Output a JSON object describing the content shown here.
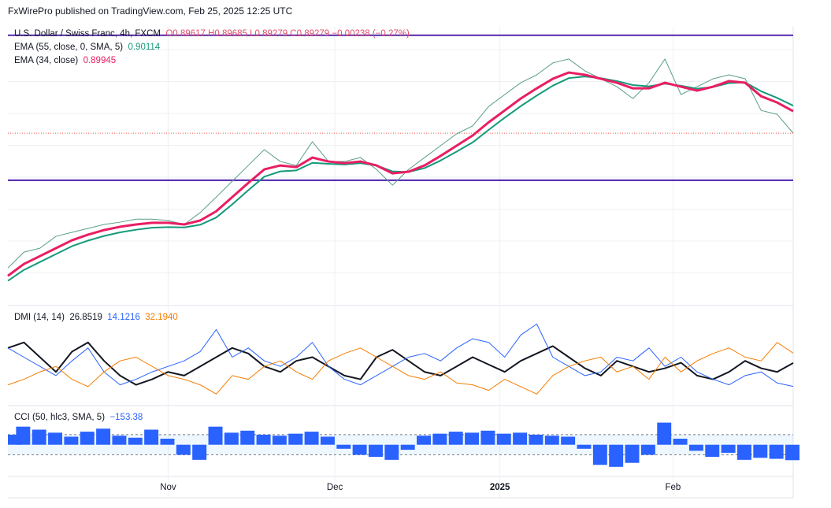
{
  "header": "FxWirePro published on TradingView.com, Feb 25, 2025 12:25 UTC",
  "chart_data": [
    {
      "type": "line",
      "title": "U.S. Dollar / Swiss Franc, 4h, FXCM",
      "ohlc": "O0.89617  H0.89685  L0.89279  C0.89279  −0.00238 (−0.27%)",
      "xlim": [
        0,
        49
      ],
      "ylim": [
        0.8412,
        0.9246
      ],
      "hlines": [
        {
          "value": 0.9225,
          "color": "#5e35b1"
        },
        {
          "value": 0.8785,
          "color": "#5e35b1"
        }
      ],
      "series": [
        {
          "color": "#5a9e86",
          "values": [
            0.8519,
            0.8567,
            0.8579,
            0.8615,
            0.8627,
            0.8639,
            0.8651,
            0.8658,
            0.8667,
            0.8667,
            0.8663,
            0.8651,
            0.8687,
            0.8734,
            0.8782,
            0.883,
            0.8878,
            0.8842,
            0.883,
            0.8902,
            0.8842,
            0.8842,
            0.8854,
            0.8818,
            0.877,
            0.8818,
            0.8854,
            0.889,
            0.8926,
            0.895,
            0.9009,
            0.9045,
            0.9081,
            0.9105,
            0.9141,
            0.9153,
            0.9117,
            0.9093,
            0.9069,
            0.9033,
            0.9081,
            0.9153,
            0.9045,
            0.9069,
            0.9093,
            0.9105,
            0.9093,
            0.8997,
            0.8985,
            0.89279
          ]
        },
        {
          "name": "EMA (55, close, 0, SMA, 5)",
          "color": "#159a7a",
          "values": [
            0.848,
            0.8513,
            0.8537,
            0.8561,
            0.8585,
            0.8602,
            0.8616,
            0.8627,
            0.8635,
            0.8641,
            0.8643,
            0.8642,
            0.865,
            0.8672,
            0.8712,
            0.8755,
            0.8796,
            0.8812,
            0.8815,
            0.8838,
            0.8835,
            0.8833,
            0.8837,
            0.883,
            0.8812,
            0.881,
            0.8822,
            0.8845,
            0.8872,
            0.89,
            0.8938,
            0.8975,
            0.901,
            0.9042,
            0.9072,
            0.9095,
            0.91,
            0.9095,
            0.9086,
            0.9074,
            0.907,
            0.9078,
            0.9072,
            0.9063,
            0.9068,
            0.908,
            0.9082,
            0.9055,
            0.9035,
            0.90114
          ]
        },
        {
          "name": "EMA (34, close)",
          "color": "#e91e63",
          "values": [
            0.8495,
            0.8531,
            0.8555,
            0.8579,
            0.8603,
            0.862,
            0.8634,
            0.8644,
            0.8651,
            0.8656,
            0.8656,
            0.8651,
            0.8663,
            0.8691,
            0.8734,
            0.8777,
            0.8818,
            0.883,
            0.8825,
            0.8854,
            0.8842,
            0.8837,
            0.8842,
            0.883,
            0.8806,
            0.8811,
            0.883,
            0.8859,
            0.889,
            0.8921,
            0.8961,
            0.8997,
            0.9033,
            0.9064,
            0.9093,
            0.9112,
            0.9105,
            0.9093,
            0.9081,
            0.9064,
            0.9064,
            0.9081,
            0.9069,
            0.9057,
            0.9069,
            0.9086,
            0.9081,
            0.904,
            0.9021,
            0.89945
          ]
        }
      ]
    },
    {
      "type": "line",
      "title": "DMI (14, 14)",
      "xlim": [
        0,
        49
      ],
      "ylim": [
        5,
        55
      ],
      "series": [
        {
          "color": "#131722",
          "values": [
            35,
            38,
            30,
            22,
            33,
            38,
            28,
            20,
            15,
            18,
            22,
            20,
            25,
            30,
            35,
            32,
            25,
            22,
            28,
            30,
            25,
            20,
            18,
            30,
            34,
            28,
            22,
            20,
            25,
            30,
            26,
            22,
            28,
            32,
            36,
            30,
            24,
            20,
            28,
            25,
            22,
            24,
            27,
            20,
            18,
            22,
            28,
            24,
            22,
            26.8519
          ]
        },
        {
          "color": "#2962ff",
          "values": [
            35,
            30,
            25,
            20,
            28,
            35,
            22,
            15,
            18,
            22,
            25,
            28,
            33,
            45,
            30,
            35,
            28,
            25,
            30,
            38,
            25,
            18,
            15,
            20,
            25,
            30,
            32,
            28,
            35,
            40,
            38,
            30,
            42,
            48,
            30,
            25,
            20,
            22,
            30,
            28,
            35,
            25,
            30,
            22,
            18,
            15,
            20,
            22,
            16,
            14.1216
          ]
        },
        {
          "color": "#f57c00",
          "values": [
            15,
            18,
            22,
            25,
            18,
            14,
            22,
            28,
            30,
            25,
            20,
            18,
            15,
            10,
            20,
            18,
            25,
            28,
            22,
            18,
            28,
            32,
            35,
            30,
            25,
            20,
            18,
            22,
            16,
            15,
            12,
            18,
            14,
            10,
            20,
            25,
            28,
            30,
            22,
            25,
            18,
            30,
            22,
            28,
            32,
            35,
            30,
            28,
            38,
            32.194
          ],
          "value_labels": [
            null,
            null,
            null,
            null,
            null,
            null,
            null,
            null,
            null,
            null,
            null,
            null,
            null,
            null,
            null,
            null,
            null,
            null,
            null,
            null,
            null,
            null,
            null,
            null,
            null,
            null,
            null,
            null,
            null,
            null,
            null,
            null,
            null,
            null,
            null,
            null,
            null,
            null,
            null,
            null,
            null,
            null,
            null,
            null,
            null,
            null,
            null,
            null,
            null,
            "32.1940"
          ]
        }
      ]
    },
    {
      "type": "bar",
      "title": "CCI (50, hlc3, SMA, 5)",
      "xlim": [
        0,
        49
      ],
      "ylim": [
        -300,
        350
      ],
      "color": "#2962ff",
      "levels": [
        100,
        -100
      ],
      "values": [
        100,
        180,
        150,
        120,
        80,
        130,
        160,
        90,
        70,
        150,
        60,
        -100,
        -150,
        180,
        120,
        140,
        100,
        90,
        110,
        130,
        80,
        -40,
        -100,
        -120,
        -150,
        -50,
        90,
        110,
        130,
        120,
        140,
        110,
        120,
        100,
        90,
        80,
        -40,
        -200,
        -220,
        -180,
        -100,
        220,
        60,
        -60,
        -120,
        -80,
        -150,
        -130,
        -140,
        -153.38
      ],
      "value_labels": [
        null,
        null,
        null,
        null,
        null,
        null,
        null,
        null,
        null,
        null,
        null,
        null,
        null,
        null,
        null,
        null,
        null,
        null,
        null,
        null,
        null,
        null,
        null,
        null,
        null,
        null,
        null,
        null,
        null,
        null,
        null,
        null,
        null,
        null,
        null,
        null,
        null,
        null,
        null,
        null,
        null,
        null,
        null,
        null,
        null,
        null,
        null,
        null,
        null,
        "−153.38"
      ],
      "xticks": [
        {
          "value": 10,
          "label": "Nov"
        },
        {
          "value": 20.4,
          "label": "Dec"
        },
        {
          "value": 30.7,
          "label": "2025"
        },
        {
          "value": 41.5,
          "label": "Feb"
        }
      ]
    }
  ]
}
